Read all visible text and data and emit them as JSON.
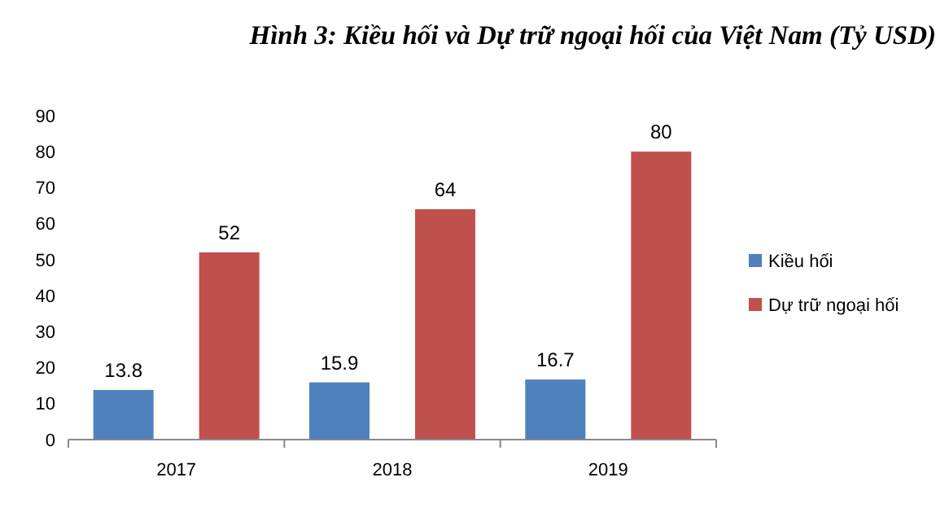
{
  "chart_data": {
    "type": "bar",
    "title": "Hình 3: Kiều hối và Dự trữ ngoại hối của Việt Nam (Tỷ USD)",
    "categories": [
      "2017",
      "2018",
      "2019"
    ],
    "series": [
      {
        "name": "Kiều hối",
        "color": "#4f81bd",
        "values": [
          13.8,
          15.9,
          16.7
        ]
      },
      {
        "name": "Dự trữ ngoại hối",
        "color": "#c0504d",
        "values": [
          52,
          64,
          80
        ]
      }
    ],
    "ylim": [
      0,
      90
    ],
    "yticks": [
      0,
      10,
      20,
      30,
      40,
      50,
      60,
      70,
      80,
      90
    ],
    "grid": false,
    "legend": "right",
    "data_labels": true
  }
}
